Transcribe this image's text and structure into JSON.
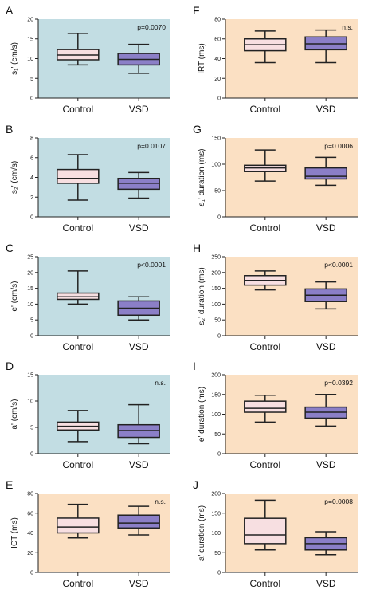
{
  "colors": {
    "blue_bg": "#c2dde3",
    "orange_bg": "#fbe0c3",
    "control_box": "#f7dfe1",
    "vsd_box": "#8b7fc7",
    "stroke": "#222222"
  },
  "chart_data": [
    {
      "id": "A",
      "letter": "A",
      "type": "box",
      "bg": "blue",
      "ylabel": "s₁' (cm/s)",
      "ylim": [
        0,
        20
      ],
      "yticks": [
        "0",
        "5",
        "10",
        "15",
        "20"
      ],
      "pvalue": "p=0.0070",
      "categories": [
        "Control",
        "VSD"
      ],
      "boxes": [
        {
          "min": 8.4,
          "q1": 9.7,
          "median": 10.9,
          "q3": 12.3,
          "max": 16.4
        },
        {
          "min": 6.3,
          "q1": 8.4,
          "median": 9.8,
          "q3": 11.3,
          "max": 13.6
        }
      ]
    },
    {
      "id": "B",
      "letter": "B",
      "type": "box",
      "bg": "blue",
      "ylabel": "s₂' (cm/s)",
      "ylim": [
        0,
        8
      ],
      "yticks": [
        "0",
        "2",
        "4",
        "6",
        "8"
      ],
      "pvalue": "p=0.0107",
      "categories": [
        "Control",
        "VSD"
      ],
      "boxes": [
        {
          "min": 1.7,
          "q1": 3.4,
          "median": 3.9,
          "q3": 4.8,
          "max": 6.3
        },
        {
          "min": 1.9,
          "q1": 2.8,
          "median": 3.4,
          "q3": 3.9,
          "max": 4.5
        }
      ]
    },
    {
      "id": "C",
      "letter": "C",
      "type": "box",
      "bg": "blue",
      "ylabel": "e' (cm/s)",
      "ylim": [
        0,
        25
      ],
      "yticks": [
        "0",
        "5",
        "10",
        "15",
        "20",
        "25"
      ],
      "pvalue": "p<0.0001",
      "categories": [
        "Control",
        "VSD"
      ],
      "boxes": [
        {
          "min": 10.0,
          "q1": 11.5,
          "median": 12.3,
          "q3": 13.5,
          "max": 20.5
        },
        {
          "min": 5.0,
          "q1": 6.5,
          "median": 8.7,
          "q3": 11.0,
          "max": 12.3
        }
      ]
    },
    {
      "id": "D",
      "letter": "D",
      "type": "box",
      "bg": "blue",
      "ylabel": "a' (cm/s)",
      "ylim": [
        0,
        15
      ],
      "yticks": [
        "0",
        "5",
        "10",
        "15"
      ],
      "pvalue": "n.s.",
      "categories": [
        "Control",
        "VSD"
      ],
      "boxes": [
        {
          "min": 2.3,
          "q1": 4.5,
          "median": 5.2,
          "q3": 6.0,
          "max": 8.2
        },
        {
          "min": 1.9,
          "q1": 3.1,
          "median": 4.4,
          "q3": 5.5,
          "max": 9.3
        }
      ]
    },
    {
      "id": "E",
      "letter": "E",
      "type": "box",
      "bg": "orange",
      "ylabel": "ICT (ms)",
      "ylim": [
        0,
        80
      ],
      "yticks": [
        "0",
        "20",
        "40",
        "60",
        "80"
      ],
      "pvalue": "n.s.",
      "categories": [
        "Control",
        "VSD"
      ],
      "boxes": [
        {
          "min": 35,
          "q1": 40,
          "median": 46,
          "q3": 55,
          "max": 69
        },
        {
          "min": 38,
          "q1": 45,
          "median": 50,
          "q3": 58,
          "max": 67
        }
      ]
    },
    {
      "id": "F",
      "letter": "F",
      "type": "box",
      "bg": "orange",
      "ylabel": "IRT (ms)",
      "ylim": [
        0,
        80
      ],
      "yticks": [
        "0",
        "20",
        "40",
        "60",
        "80"
      ],
      "pvalue": "n.s.",
      "categories": [
        "Control",
        "VSD"
      ],
      "boxes": [
        {
          "min": 36,
          "q1": 48,
          "median": 54,
          "q3": 60,
          "max": 68
        },
        {
          "min": 36,
          "q1": 49,
          "median": 55,
          "q3": 62,
          "max": 69
        }
      ]
    },
    {
      "id": "G",
      "letter": "G",
      "type": "box",
      "bg": "orange",
      "ylabel": "s₁' duration (ms)",
      "ylim": [
        0,
        150
      ],
      "yticks": [
        "0",
        "50",
        "100",
        "150"
      ],
      "pvalue": "p=0.0006",
      "categories": [
        "Control",
        "VSD"
      ],
      "boxes": [
        {
          "min": 68,
          "q1": 86,
          "median": 93,
          "q3": 98,
          "max": 127
        },
        {
          "min": 60,
          "q1": 72,
          "median": 77,
          "q3": 93,
          "max": 113
        }
      ]
    },
    {
      "id": "H",
      "letter": "H",
      "type": "box",
      "bg": "orange",
      "ylabel": "s₂' duration (ms)",
      "ylim": [
        0,
        250
      ],
      "yticks": [
        "0",
        "50",
        "100",
        "150",
        "200",
        "250"
      ],
      "pvalue": "p<0.0001",
      "categories": [
        "Control",
        "VSD"
      ],
      "boxes": [
        {
          "min": 145,
          "q1": 160,
          "median": 175,
          "q3": 190,
          "max": 205
        },
        {
          "min": 85,
          "q1": 108,
          "median": 128,
          "q3": 148,
          "max": 170
        }
      ]
    },
    {
      "id": "I",
      "letter": "I",
      "type": "box",
      "bg": "orange",
      "ylabel": "e' duration (ms)",
      "ylim": [
        0,
        200
      ],
      "yticks": [
        "0",
        "50",
        "100",
        "150",
        "200"
      ],
      "pvalue": "p=0.0392",
      "categories": [
        "Control",
        "VSD"
      ],
      "boxes": [
        {
          "min": 80,
          "q1": 105,
          "median": 115,
          "q3": 133,
          "max": 148
        },
        {
          "min": 70,
          "q1": 90,
          "median": 105,
          "q3": 118,
          "max": 150
        }
      ]
    },
    {
      "id": "J",
      "letter": "J",
      "type": "box",
      "bg": "orange",
      "ylabel": "a' duration (ms)",
      "ylim": [
        0,
        200
      ],
      "yticks": [
        "0",
        "50",
        "100",
        "150",
        "200"
      ],
      "pvalue": "p=0.0008",
      "categories": [
        "Control",
        "VSD"
      ],
      "boxes": [
        {
          "min": 57,
          "q1": 73,
          "median": 95,
          "q3": 137,
          "max": 183
        },
        {
          "min": 45,
          "q1": 57,
          "median": 73,
          "q3": 88,
          "max": 103
        }
      ]
    }
  ]
}
